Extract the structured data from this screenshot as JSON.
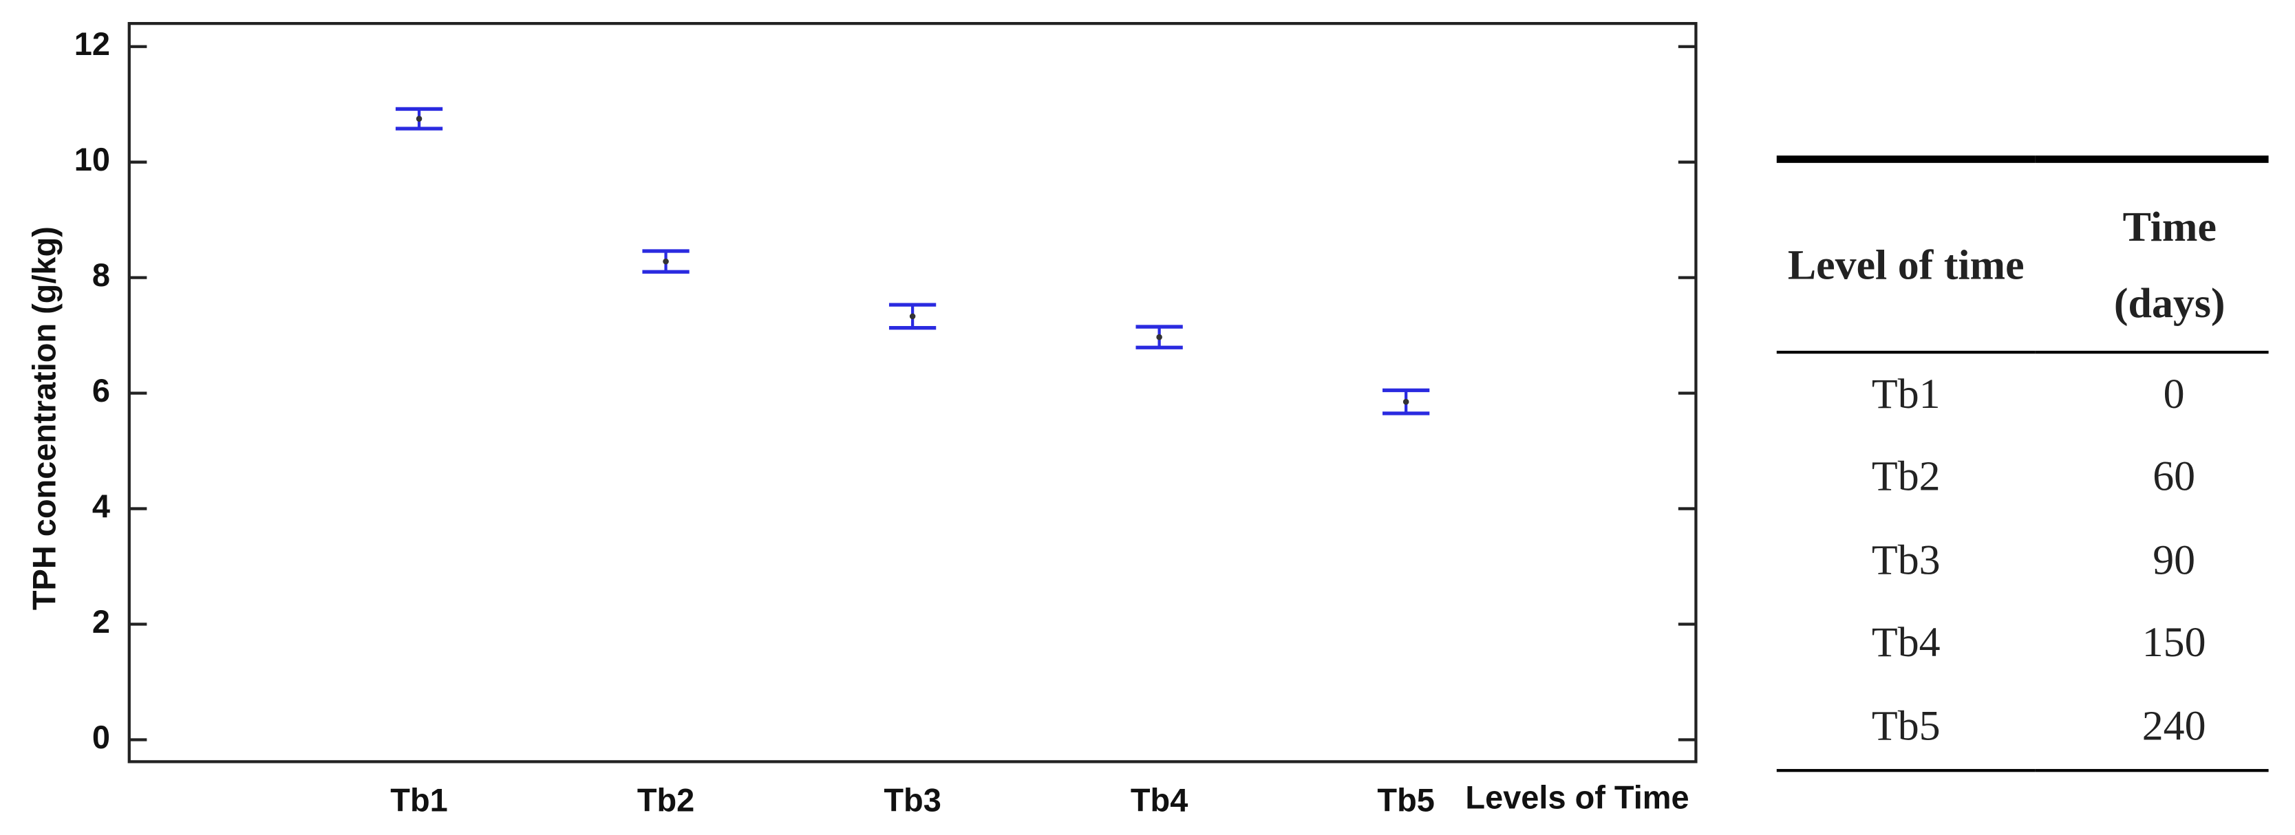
{
  "chart_data": {
    "type": "errorbar",
    "y_label": "TPH concentration (g/kg)",
    "x_label": "Levels of Time",
    "categories": [
      "Tb1",
      "Tb2",
      "Tb3",
      "Tb4",
      "Tb5"
    ],
    "values": [
      10.75,
      8.28,
      7.33,
      6.97,
      5.85
    ],
    "errors": [
      0.17,
      0.18,
      0.2,
      0.18,
      0.2
    ],
    "color": "#2a2ae0",
    "ylim": [
      -0.38,
      12.4
    ],
    "yticks": [
      0,
      2,
      4,
      6,
      8,
      10,
      12
    ]
  },
  "table": {
    "header": [
      "Level of time",
      "Time (days)"
    ],
    "rows": [
      [
        "Tb1",
        "0"
      ],
      [
        "Tb2",
        "60"
      ],
      [
        "Tb3",
        "90"
      ],
      [
        "Tb4",
        "150"
      ],
      [
        "Tb5",
        "240"
      ]
    ]
  }
}
